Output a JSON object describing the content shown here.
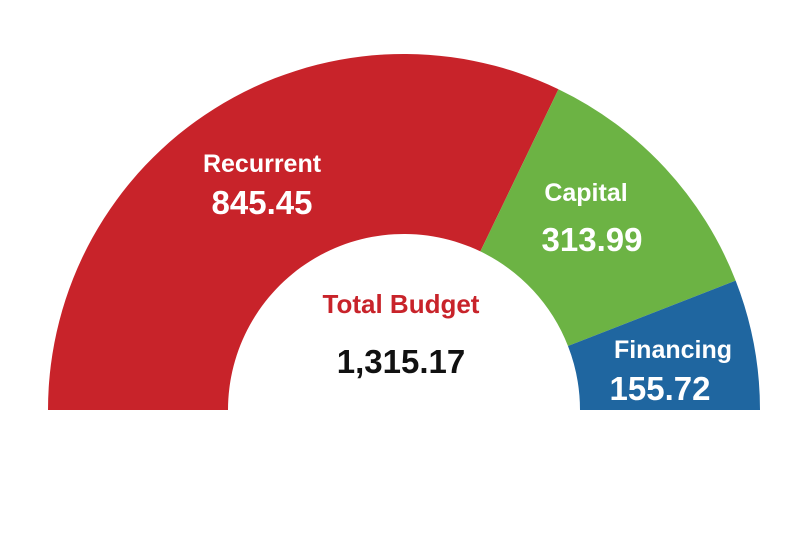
{
  "chart_data": {
    "type": "pie",
    "variant": "half-donut",
    "categories": [
      "Recurrent",
      "Capital",
      "Financing"
    ],
    "values": [
      845.45,
      313.99,
      155.72
    ],
    "colors": [
      "#c8232a",
      "#6cb344",
      "#1f66a0"
    ],
    "center_label": "Total Budget",
    "center_value": "1,315.17",
    "center_label_color": "#c8232a",
    "labels": [
      {
        "name": "Recurrent",
        "value": "845.45"
      },
      {
        "name": "Capital",
        "value": "313.99"
      },
      {
        "name": "Financing",
        "value": "155.72"
      }
    ]
  }
}
